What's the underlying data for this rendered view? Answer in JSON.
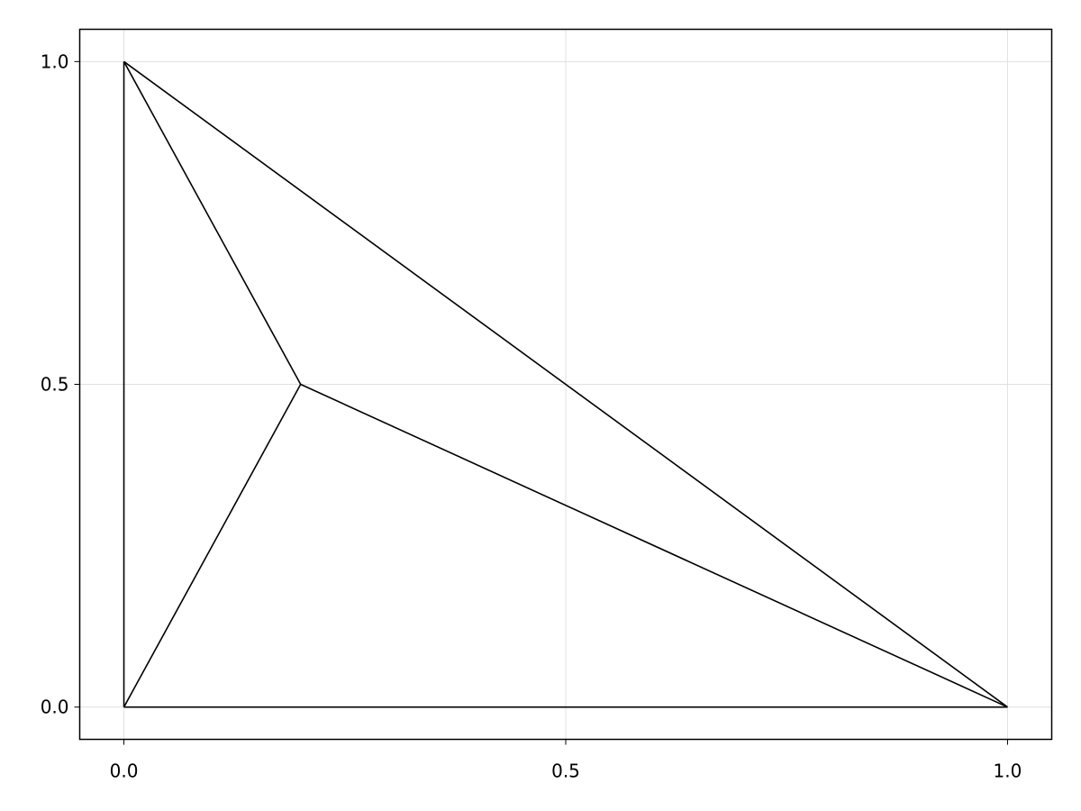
{
  "chart_data": {
    "type": "line",
    "title": "",
    "xlabel": "",
    "ylabel": "",
    "xlim": [
      -0.05,
      1.05
    ],
    "ylim": [
      -0.05,
      1.05
    ],
    "grid": true,
    "xticks": [
      0.0,
      0.5,
      1.0
    ],
    "yticks": [
      0.0,
      0.5,
      1.0
    ],
    "xtick_labels": [
      "0.0",
      "0.5",
      "1.0"
    ],
    "ytick_labels": [
      "0.0",
      "0.5",
      "1.0"
    ],
    "points": [
      [
        0,
        0
      ],
      [
        1,
        0
      ],
      [
        0,
        1
      ],
      [
        0.2,
        0.5
      ]
    ],
    "edges": [
      [
        [
          0,
          0
        ],
        [
          1,
          0
        ]
      ],
      [
        [
          1,
          0
        ],
        [
          0,
          1
        ]
      ],
      [
        [
          0,
          1
        ],
        [
          0,
          0
        ]
      ],
      [
        [
          0.2,
          0.5
        ],
        [
          0,
          0
        ]
      ],
      [
        [
          0.2,
          0.5
        ],
        [
          1,
          0
        ]
      ],
      [
        [
          0.2,
          0.5
        ],
        [
          0,
          1
        ]
      ]
    ],
    "line_color": "#000000",
    "grid_color": "#e0e0e0"
  }
}
